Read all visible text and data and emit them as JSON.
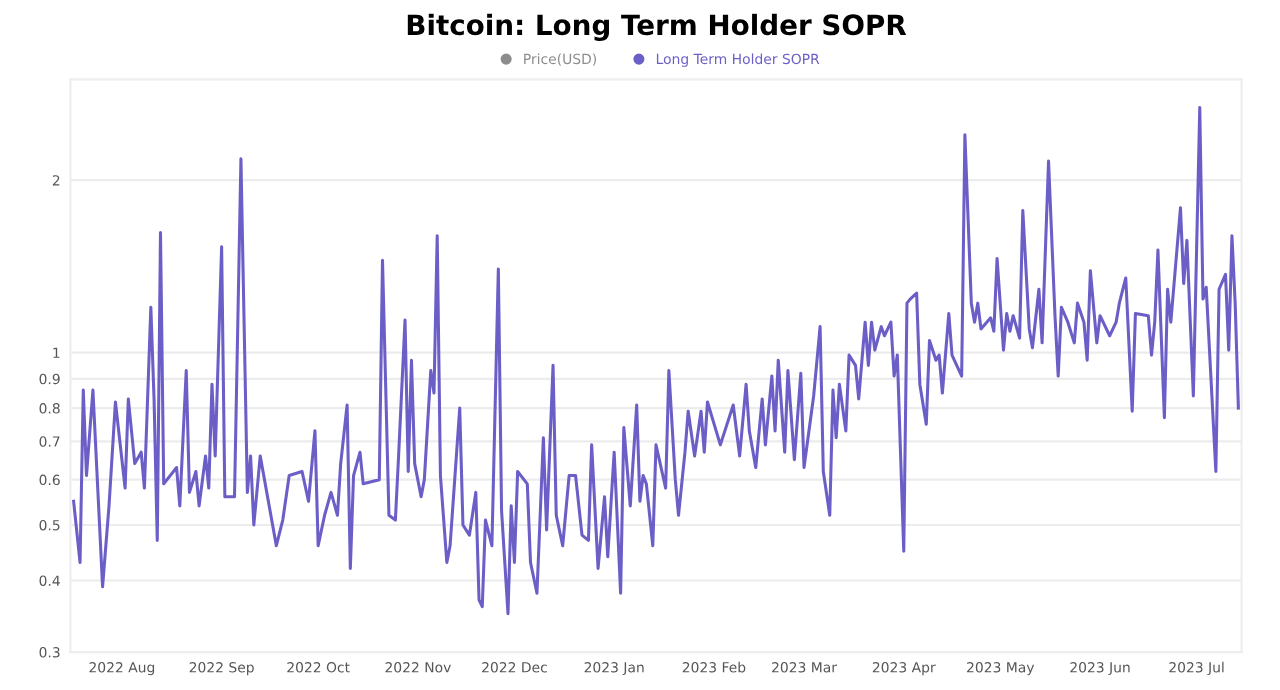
{
  "chart_data": {
    "type": "line",
    "title": "Bitcoin: Long Term Holder SOPR",
    "log": "y",
    "grid": "y",
    "legend": "top",
    "marker": "none",
    "line_style": "solid",
    "xlim": [
      "2022-07-16",
      "2023-07-15"
    ],
    "xticks": [
      {
        "value": "2022-08-01",
        "label": "2022 Aug"
      },
      {
        "value": "2022-09-01",
        "label": "2022 Sep"
      },
      {
        "value": "2022-10-01",
        "label": "2022 Oct"
      },
      {
        "value": "2022-11-01",
        "label": "2022 Nov"
      },
      {
        "value": "2022-12-01",
        "label": "2022 Dec"
      },
      {
        "value": "2023-01-01",
        "label": "2023 Jan"
      },
      {
        "value": "2023-02-01",
        "label": "2023 Feb"
      },
      {
        "value": "2023-03-01",
        "label": "2023 Mar"
      },
      {
        "value": "2023-04-01",
        "label": "2023 Apr"
      },
      {
        "value": "2023-05-01",
        "label": "2023 May"
      },
      {
        "value": "2023-06-01",
        "label": "2023 Jun"
      },
      {
        "value": "2023-07-01",
        "label": "2023 Jul"
      }
    ],
    "ylim": [
      0.3,
      3
    ],
    "yticks": [
      0.3,
      0.4,
      0.5,
      0.6,
      0.7,
      0.8,
      0.9,
      1,
      2
    ],
    "series": [
      {
        "name": "Price(USD)",
        "color": "#8c8c8c"
      },
      {
        "name": "Long Term Holder SOPR",
        "color": "#6b5fc7",
        "x": [
          "2022-07-17",
          "2022-07-19",
          "2022-07-20",
          "2022-07-21",
          "2022-07-23",
          "2022-07-26",
          "2022-07-28",
          "2022-07-30",
          "2022-08-02",
          "2022-08-03",
          "2022-08-05",
          "2022-08-07",
          "2022-08-08",
          "2022-08-10",
          "2022-08-11",
          "2022-08-12",
          "2022-08-13",
          "2022-08-14",
          "2022-08-18",
          "2022-08-19",
          "2022-08-21",
          "2022-08-22",
          "2022-08-24",
          "2022-08-25",
          "2022-08-27",
          "2022-08-28",
          "2022-08-29",
          "2022-08-30",
          "2022-09-01",
          "2022-09-02",
          "2022-09-05",
          "2022-09-07",
          "2022-09-09",
          "2022-09-10",
          "2022-09-11",
          "2022-09-13",
          "2022-09-18",
          "2022-09-20",
          "2022-09-22",
          "2022-09-26",
          "2022-09-28",
          "2022-09-30",
          "2022-10-01",
          "2022-10-03",
          "2022-10-05",
          "2022-10-07",
          "2022-10-08",
          "2022-10-10",
          "2022-10-11",
          "2022-10-12",
          "2022-10-14",
          "2022-10-15",
          "2022-10-20",
          "2022-10-21",
          "2022-10-23",
          "2022-10-25",
          "2022-10-26",
          "2022-10-28",
          "2022-10-29",
          "2022-10-30",
          "2022-10-31",
          "2022-11-02",
          "2022-11-03",
          "2022-11-05",
          "2022-11-06",
          "2022-11-07",
          "2022-11-08",
          "2022-11-10",
          "2022-11-11",
          "2022-11-14",
          "2022-11-15",
          "2022-11-17",
          "2022-11-19",
          "2022-11-20",
          "2022-11-21",
          "2022-11-22",
          "2022-11-24",
          "2022-11-26",
          "2022-11-27",
          "2022-11-29",
          "2022-11-30",
          "2022-12-01",
          "2022-12-02",
          "2022-12-05",
          "2022-12-06",
          "2022-12-08",
          "2022-12-10",
          "2022-12-11",
          "2022-12-13",
          "2022-12-14",
          "2022-12-16",
          "2022-12-18",
          "2022-12-20",
          "2022-12-22",
          "2022-12-24",
          "2022-12-25",
          "2022-12-27",
          "2022-12-29",
          "2022-12-30",
          "2023-01-01",
          "2023-01-03",
          "2023-01-04",
          "2023-01-06",
          "2023-01-08",
          "2023-01-09",
          "2023-01-10",
          "2023-01-11",
          "2023-01-13",
          "2023-01-14",
          "2023-01-17",
          "2023-01-18",
          "2023-01-20",
          "2023-01-21",
          "2023-01-23",
          "2023-01-24",
          "2023-01-26",
          "2023-01-28",
          "2023-01-29",
          "2023-01-30",
          "2023-02-03",
          "2023-02-07",
          "2023-02-09",
          "2023-02-11",
          "2023-02-12",
          "2023-02-14",
          "2023-02-16",
          "2023-02-17",
          "2023-02-19",
          "2023-02-20",
          "2023-02-21",
          "2023-02-23",
          "2023-02-24",
          "2023-02-26",
          "2023-02-28",
          "2023-03-01",
          "2023-03-04",
          "2023-03-06",
          "2023-03-07",
          "2023-03-09",
          "2023-03-10",
          "2023-03-11",
          "2023-03-12",
          "2023-03-14",
          "2023-03-15",
          "2023-03-17",
          "2023-03-18",
          "2023-03-20",
          "2023-03-21",
          "2023-03-22",
          "2023-03-23",
          "2023-03-25",
          "2023-03-26",
          "2023-03-28",
          "2023-03-29",
          "2023-03-30",
          "2023-04-01",
          "2023-04-02",
          "2023-04-03",
          "2023-04-05",
          "2023-04-06",
          "2023-04-08",
          "2023-04-09",
          "2023-04-11",
          "2023-04-12",
          "2023-04-13",
          "2023-04-15",
          "2023-04-16",
          "2023-04-19",
          "2023-04-20",
          "2023-04-22",
          "2023-04-23",
          "2023-04-24",
          "2023-04-25",
          "2023-04-28",
          "2023-04-29",
          "2023-04-30",
          "2023-05-02",
          "2023-05-03",
          "2023-05-04",
          "2023-05-05",
          "2023-05-07",
          "2023-05-08",
          "2023-05-10",
          "2023-05-11",
          "2023-05-13",
          "2023-05-14",
          "2023-05-16",
          "2023-05-18",
          "2023-05-19",
          "2023-05-20",
          "2023-05-22",
          "2023-05-24",
          "2023-05-25",
          "2023-05-27",
          "2023-05-28",
          "2023-05-29",
          "2023-05-31",
          "2023-06-01",
          "2023-06-04",
          "2023-06-06",
          "2023-06-07",
          "2023-06-09",
          "2023-06-11",
          "2023-06-12",
          "2023-06-16",
          "2023-06-17",
          "2023-06-18",
          "2023-06-19",
          "2023-06-21",
          "2023-06-22",
          "2023-06-23",
          "2023-06-26",
          "2023-06-27",
          "2023-06-28",
          "2023-06-30",
          "2023-07-02",
          "2023-07-03",
          "2023-07-04",
          "2023-07-07",
          "2023-07-08",
          "2023-07-10",
          "2023-07-11",
          "2023-07-12",
          "2023-07-13",
          "2023-07-14"
        ],
        "values": [
          0.55,
          0.43,
          0.86,
          0.61,
          0.86,
          0.39,
          0.54,
          0.82,
          0.58,
          0.83,
          0.64,
          0.67,
          0.58,
          1.2,
          0.83,
          0.47,
          1.62,
          0.59,
          0.63,
          0.54,
          0.93,
          0.57,
          0.62,
          0.54,
          0.66,
          0.58,
          0.88,
          0.66,
          1.53,
          0.56,
          0.56,
          2.18,
          0.57,
          0.66,
          0.5,
          0.66,
          0.46,
          0.51,
          0.61,
          0.62,
          0.55,
          0.73,
          0.46,
          0.52,
          0.57,
          0.52,
          0.64,
          0.81,
          0.42,
          0.61,
          0.67,
          0.59,
          0.6,
          1.45,
          0.52,
          0.51,
          0.66,
          1.14,
          0.62,
          0.97,
          0.64,
          0.56,
          0.6,
          0.93,
          0.85,
          1.6,
          0.61,
          0.43,
          0.46,
          0.8,
          0.5,
          0.48,
          0.57,
          0.37,
          0.36,
          0.51,
          0.46,
          1.4,
          0.53,
          0.35,
          0.54,
          0.43,
          0.62,
          0.59,
          0.43,
          0.38,
          0.71,
          0.49,
          0.95,
          0.52,
          0.46,
          0.61,
          0.61,
          0.48,
          0.47,
          0.69,
          0.42,
          0.56,
          0.44,
          0.67,
          0.38,
          0.74,
          0.54,
          0.81,
          0.55,
          0.61,
          0.59,
          0.46,
          0.69,
          0.58,
          0.93,
          0.6,
          0.52,
          0.67,
          0.79,
          0.66,
          0.79,
          0.67,
          0.82,
          0.69,
          0.81,
          0.66,
          0.88,
          0.73,
          0.63,
          0.83,
          0.69,
          0.91,
          0.73,
          0.97,
          0.67,
          0.93,
          0.65,
          0.92,
          0.63,
          0.84,
          1.11,
          0.62,
          0.52,
          0.86,
          0.71,
          0.88,
          0.73,
          0.99,
          0.95,
          0.83,
          1.13,
          0.95,
          1.13,
          1.01,
          1.11,
          1.07,
          1.13,
          0.91,
          0.99,
          0.45,
          1.22,
          1.24,
          1.27,
          0.88,
          0.75,
          1.05,
          0.97,
          0.99,
          0.85,
          1.17,
          0.99,
          0.91,
          2.4,
          1.22,
          1.13,
          1.22,
          1.1,
          1.15,
          1.09,
          1.46,
          1.01,
          1.17,
          1.09,
          1.16,
          1.06,
          1.77,
          1.1,
          1.02,
          1.29,
          1.04,
          2.16,
          1.16,
          0.91,
          1.2,
          1.13,
          1.04,
          1.22,
          1.13,
          0.97,
          1.39,
          1.04,
          1.16,
          1.07,
          1.13,
          1.22,
          1.35,
          0.79,
          1.17,
          1.16,
          0.99,
          1.13,
          1.51,
          0.77,
          1.29,
          1.13,
          1.79,
          1.32,
          1.57,
          0.84,
          2.68,
          1.24,
          1.3,
          0.62,
          1.29,
          1.37,
          1.01,
          1.6,
          1.22,
          0.8
        ]
      }
    ]
  }
}
